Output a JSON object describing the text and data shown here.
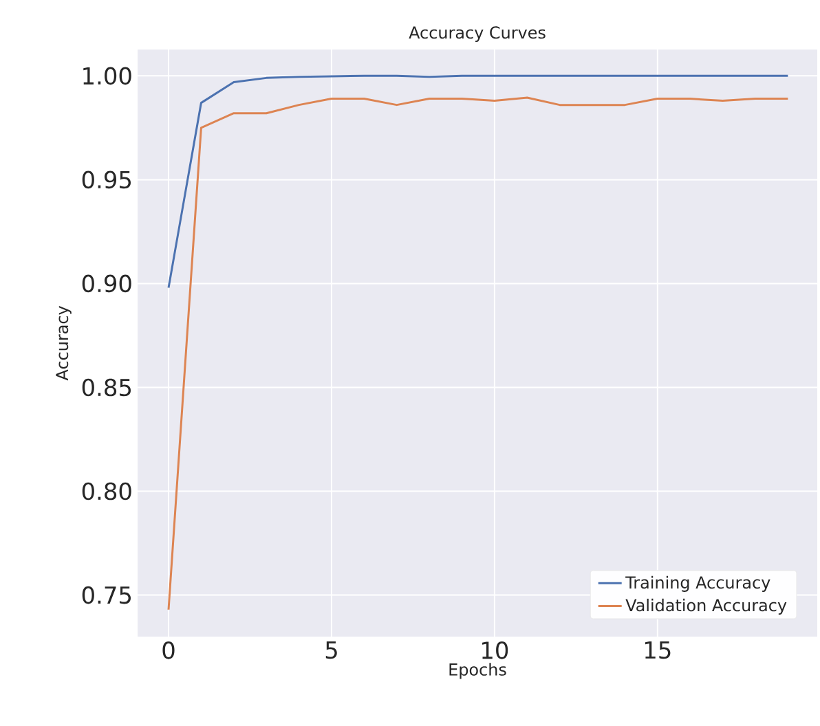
{
  "chart_data": {
    "type": "line",
    "title": "Accuracy Curves",
    "xlabel": "Epochs",
    "ylabel": "Accuracy",
    "x": [
      0,
      1,
      2,
      3,
      4,
      5,
      6,
      7,
      8,
      9,
      10,
      11,
      12,
      13,
      14,
      15,
      16,
      17,
      18,
      19
    ],
    "series": [
      {
        "name": "Training Accuracy",
        "color": "#4c72b0",
        "values": [
          0.898,
          0.987,
          0.997,
          0.999,
          0.9995,
          0.9998,
          1.0,
          1.0,
          0.9995,
          1.0,
          1.0,
          1.0,
          1.0,
          1.0,
          1.0,
          1.0,
          1.0,
          1.0,
          1.0,
          1.0
        ]
      },
      {
        "name": "Validation Accuracy",
        "color": "#dd8452",
        "values": [
          0.743,
          0.975,
          0.982,
          0.982,
          0.986,
          0.989,
          0.989,
          0.986,
          0.989,
          0.989,
          0.988,
          0.9895,
          0.986,
          0.986,
          0.986,
          0.989,
          0.989,
          0.988,
          0.989,
          0.989
        ]
      }
    ],
    "xlim": [
      -0.95,
      19.9
    ],
    "ylim": [
      0.73,
      1.0127
    ],
    "xticks": [
      0,
      5,
      10,
      15
    ],
    "yticks": [
      {
        "value": 0.75,
        "label": "0.75"
      },
      {
        "value": 0.8,
        "label": "0.80"
      },
      {
        "value": 0.85,
        "label": "0.85"
      },
      {
        "value": 0.9,
        "label": "0.90"
      },
      {
        "value": 0.95,
        "label": "0.95"
      },
      {
        "value": 1.0,
        "label": "1.00"
      }
    ],
    "grid": true,
    "legend": "bottom right",
    "line_style": "solid",
    "marker": "none"
  }
}
